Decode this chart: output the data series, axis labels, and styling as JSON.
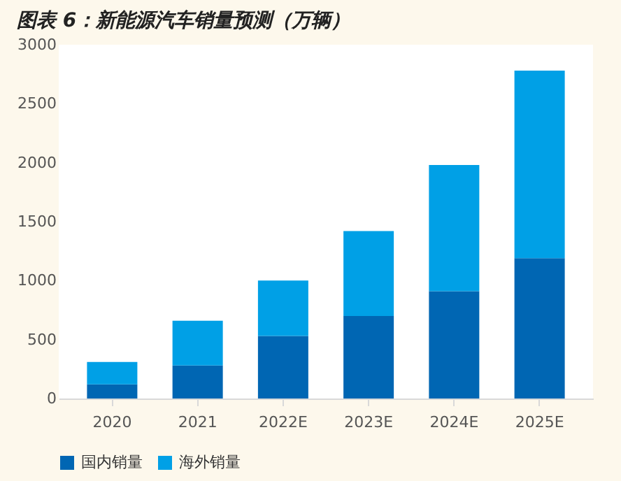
{
  "chart_data": {
    "type": "bar",
    "title": "图表 6：新能源汽车销量预测（万辆）",
    "stacked": true,
    "categories": [
      "2020",
      "2021",
      "2022E",
      "2023E",
      "2024E",
      "2025E"
    ],
    "series": [
      {
        "name": "国内销量",
        "color": "#0066b3",
        "values": [
          120,
          280,
          530,
          700,
          910,
          1190
        ]
      },
      {
        "name": "海外销量",
        "color": "#00a0e6",
        "values": [
          190,
          380,
          470,
          720,
          1070,
          1590
        ]
      }
    ],
    "ylim": [
      0,
      3000
    ],
    "yticks": [
      0,
      500,
      1000,
      1500,
      2000,
      2500,
      3000
    ],
    "grid": false,
    "legend": "bottom"
  }
}
